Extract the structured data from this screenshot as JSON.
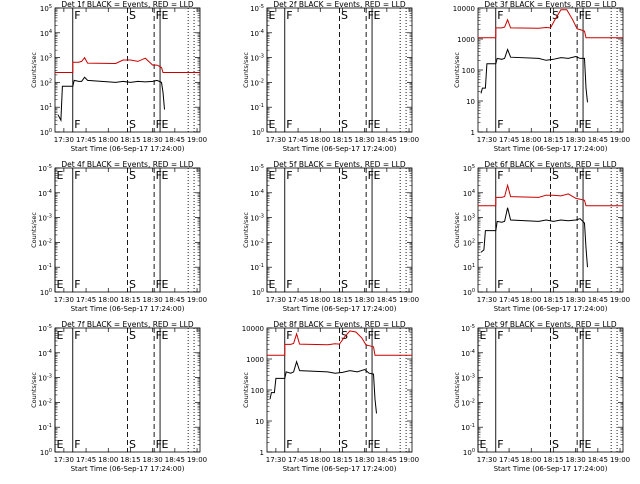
{
  "colors": {
    "events": "#000000",
    "lld": "#cc0000",
    "axis": "#000000",
    "background": "#ffffff"
  },
  "chart_data": [
    {
      "type": "line",
      "title": "Det 1f BLACK = Events, RED = LLD",
      "xlabel": "Start Time (06-Sep-17 17:24:00)",
      "ylabel": "Counts/sec",
      "x_tick_labels": [
        "17:30",
        "17:45",
        "18:00",
        "18:15",
        "18:30",
        "18:45",
        "19:00"
      ],
      "y_scale": "log",
      "y_tick_labels": [
        "10^0",
        "10^1",
        "10^2",
        "10^3",
        "10^4",
        "10^5"
      ],
      "ylim": [
        1,
        100000
      ],
      "markers": [
        {
          "time": "17:36",
          "label": "F",
          "style": "solid"
        },
        {
          "time": "18:13",
          "label": "S",
          "style": "dashed"
        },
        {
          "time": "18:31",
          "label": "F",
          "style": "dashed"
        },
        {
          "time": "18:35",
          "label": "E",
          "style": "solid"
        },
        {
          "time": "18:54",
          "label": "",
          "style": "dotted"
        },
        {
          "time": "18:58",
          "label": "",
          "style": "dotted"
        }
      ],
      "series": [
        {
          "name": "LLD",
          "color": "red",
          "x": [
            "17:24",
            "17:36",
            "17:36",
            "17:40",
            "17:42",
            "17:44",
            "17:46",
            "18:05",
            "18:10",
            "18:15",
            "18:20",
            "18:25",
            "18:30",
            "18:33",
            "18:36",
            "18:37",
            "18:40",
            "18:50",
            "19:00",
            "19:02"
          ],
          "values": [
            250,
            250,
            650,
            650,
            700,
            1000,
            600,
            580,
            800,
            800,
            700,
            950,
            500,
            500,
            400,
            250,
            250,
            250,
            250,
            250
          ]
        },
        {
          "name": "Events",
          "color": "black",
          "x": [
            "17:26",
            "17:28",
            "17:29",
            "17:36",
            "17:37",
            "17:40",
            "17:42",
            "17:44",
            "17:46",
            "18:05",
            "18:10",
            "18:15",
            "18:20",
            "18:25",
            "18:30",
            "18:33",
            "18:36",
            "18:37",
            "18:38"
          ],
          "values": [
            5,
            3,
            70,
            70,
            120,
            110,
            110,
            160,
            120,
            100,
            110,
            100,
            110,
            105,
            110,
            120,
            100,
            40,
            8
          ]
        }
      ]
    },
    {
      "type": "line",
      "title": "Det 2f BLACK = Events, RED = LLD",
      "xlabel": "Start Time (06-Sep-17 17:24:00)",
      "ylabel": "Counts/sec",
      "x_tick_labels": [
        "17:30",
        "17:45",
        "18:00",
        "18:15",
        "18:30",
        "18:45",
        "19:00"
      ],
      "y_scale": "log",
      "y_tick_labels": [
        "10^0",
        "10^-1",
        "10^-2",
        "10^-3",
        "10^-4",
        "10^-5"
      ],
      "ylim": [
        1,
        100000
      ],
      "markers": [
        {
          "time": "17:24",
          "label": "E",
          "style": "solid"
        },
        {
          "time": "17:36",
          "label": "F",
          "style": "solid"
        },
        {
          "time": "18:13",
          "label": "S",
          "style": "dashed"
        },
        {
          "time": "18:31",
          "label": "F",
          "style": "dashed"
        },
        {
          "time": "18:35",
          "label": "E",
          "style": "solid"
        },
        {
          "time": "18:54",
          "label": "",
          "style": "dotted"
        },
        {
          "time": "18:58",
          "label": "",
          "style": "dotted"
        }
      ],
      "series": []
    },
    {
      "type": "line",
      "title": "Det 3f BLACK = Events, RED = LLD",
      "xlabel": "Start Time (06-Sep-17 17:24:00)",
      "ylabel": "Counts/sec",
      "x_tick_labels": [
        "17:30",
        "17:45",
        "18:00",
        "18:15",
        "18:30",
        "18:45",
        "19:00"
      ],
      "y_scale": "log",
      "y_tick_labels": [
        "1",
        "10",
        "100",
        "1000",
        "10000"
      ],
      "ylim": [
        1,
        15000
      ],
      "markers": [
        {
          "time": "17:36",
          "label": "F",
          "style": "solid"
        },
        {
          "time": "18:13",
          "label": "S",
          "style": "dashed"
        },
        {
          "time": "18:31",
          "label": "F",
          "style": "dashed"
        },
        {
          "time": "18:35",
          "label": "E",
          "style": "solid"
        },
        {
          "time": "18:54",
          "label": "",
          "style": "dotted"
        },
        {
          "time": "18:58",
          "label": "",
          "style": "dotted"
        }
      ],
      "series": [
        {
          "name": "LLD",
          "color": "red",
          "x": [
            "17:24",
            "17:36",
            "17:36",
            "17:40",
            "17:42",
            "17:44",
            "17:46",
            "18:05",
            "18:10",
            "18:13",
            "18:16",
            "18:20",
            "18:24",
            "18:28",
            "18:31",
            "18:33",
            "18:36",
            "18:37",
            "18:40",
            "18:50",
            "19:00",
            "19:02"
          ],
          "values": [
            1500,
            1500,
            3200,
            3200,
            3400,
            6000,
            3200,
            3100,
            3300,
            3200,
            6000,
            13000,
            13000,
            6000,
            3000,
            2800,
            2500,
            1500,
            1500,
            1500,
            1500,
            1500
          ]
        },
        {
          "name": "Events",
          "color": "black",
          "x": [
            "17:26",
            "17:27",
            "17:29",
            "17:30",
            "17:36",
            "17:37",
            "17:40",
            "17:42",
            "17:44",
            "17:46",
            "18:05",
            "18:10",
            "18:15",
            "18:20",
            "18:25",
            "18:30",
            "18:33",
            "18:36",
            "18:37",
            "18:38"
          ],
          "values": [
            20,
            30,
            30,
            200,
            200,
            300,
            280,
            300,
            600,
            330,
            300,
            260,
            280,
            320,
            300,
            350,
            300,
            300,
            30,
            10
          ]
        }
      ]
    },
    {
      "type": "line",
      "title": "Det 4f BLACK = Events, RED = LLD",
      "xlabel": "Start Time (06-Sep-17 17:24:00)",
      "ylabel": "Counts/sec",
      "x_tick_labels": [
        "17:30",
        "17:45",
        "18:00",
        "18:15",
        "18:30",
        "18:45",
        "19:00"
      ],
      "y_scale": "log",
      "y_tick_labels": [
        "10^0",
        "10^-1",
        "10^-2",
        "10^-3",
        "10^-4",
        "10^-5"
      ],
      "ylim": [
        1,
        100000
      ],
      "markers": [
        {
          "time": "17:24",
          "label": "E",
          "style": "solid"
        },
        {
          "time": "17:36",
          "label": "F",
          "style": "solid"
        },
        {
          "time": "18:13",
          "label": "S",
          "style": "dashed"
        },
        {
          "time": "18:31",
          "label": "F",
          "style": "dashed"
        },
        {
          "time": "18:35",
          "label": "E",
          "style": "solid"
        },
        {
          "time": "18:54",
          "label": "",
          "style": "dotted"
        },
        {
          "time": "18:58",
          "label": "",
          "style": "dotted"
        }
      ],
      "series": []
    },
    {
      "type": "line",
      "title": "Det 5f BLACK = Events, RED = LLD",
      "xlabel": "Start Time (06-Sep-17 17:24:00)",
      "ylabel": "Counts/sec",
      "x_tick_labels": [
        "17:30",
        "17:45",
        "18:00",
        "18:15",
        "18:30",
        "18:45",
        "19:00"
      ],
      "y_scale": "log",
      "y_tick_labels": [
        "10^0",
        "10^-1",
        "10^-2",
        "10^-3",
        "10^-4",
        "10^-5"
      ],
      "ylim": [
        1,
        100000
      ],
      "markers": [
        {
          "time": "17:24",
          "label": "E",
          "style": "solid"
        },
        {
          "time": "17:36",
          "label": "F",
          "style": "solid"
        },
        {
          "time": "18:13",
          "label": "S",
          "style": "dashed"
        },
        {
          "time": "18:31",
          "label": "F",
          "style": "dashed"
        },
        {
          "time": "18:35",
          "label": "E",
          "style": "solid"
        },
        {
          "time": "18:54",
          "label": "",
          "style": "dotted"
        },
        {
          "time": "18:58",
          "label": "",
          "style": "dotted"
        }
      ],
      "series": []
    },
    {
      "type": "line",
      "title": "Det 6f BLACK = Events, RED = LLD",
      "xlabel": "Start Time (06-Sep-17 17:24:00)",
      "ylabel": "Counts/sec",
      "x_tick_labels": [
        "17:30",
        "17:45",
        "18:00",
        "18:15",
        "18:30",
        "18:45",
        "19:00"
      ],
      "y_scale": "log",
      "y_tick_labels": [
        "10^0",
        "10^1",
        "10^2",
        "10^3",
        "10^4",
        "10^5"
      ],
      "ylim": [
        1,
        100000
      ],
      "markers": [
        {
          "time": "17:36",
          "label": "F",
          "style": "solid"
        },
        {
          "time": "18:13",
          "label": "S",
          "style": "dashed"
        },
        {
          "time": "18:31",
          "label": "F",
          "style": "dashed"
        },
        {
          "time": "18:35",
          "label": "E",
          "style": "solid"
        },
        {
          "time": "18:54",
          "label": "",
          "style": "dotted"
        },
        {
          "time": "18:58",
          "label": "",
          "style": "dotted"
        }
      ],
      "series": [
        {
          "name": "LLD",
          "color": "red",
          "x": [
            "17:24",
            "17:36",
            "17:36",
            "17:40",
            "17:42",
            "17:44",
            "17:46",
            "18:05",
            "18:10",
            "18:15",
            "18:20",
            "18:25",
            "18:30",
            "18:33",
            "18:36",
            "18:37",
            "18:40",
            "18:50",
            "19:00",
            "19:02"
          ],
          "values": [
            3000,
            3000,
            6500,
            6500,
            7000,
            20000,
            7000,
            6500,
            8000,
            8000,
            7500,
            9000,
            6000,
            5500,
            5000,
            3000,
            3000,
            3000,
            3000,
            3000
          ]
        },
        {
          "name": "Events",
          "color": "black",
          "x": [
            "17:26",
            "17:28",
            "17:29",
            "17:36",
            "17:37",
            "17:40",
            "17:42",
            "17:44",
            "17:46",
            "18:05",
            "18:10",
            "18:15",
            "18:20",
            "18:25",
            "18:30",
            "18:33",
            "18:36",
            "18:37",
            "18:38"
          ],
          "values": [
            40,
            50,
            300,
            300,
            700,
            650,
            700,
            2500,
            800,
            700,
            800,
            700,
            800,
            750,
            800,
            900,
            600,
            60,
            10
          ]
        }
      ]
    },
    {
      "type": "line",
      "title": "Det 7f BLACK = Events, RED = LLD",
      "xlabel": "Start Time (06-Sep-17 17:24:00)",
      "ylabel": "Counts/sec",
      "x_tick_labels": [
        "17:30",
        "17:45",
        "18:00",
        "18:15",
        "18:30",
        "18:45",
        "19:00"
      ],
      "y_scale": "log",
      "y_tick_labels": [
        "10^0",
        "10^-1",
        "10^-2",
        "10^-3",
        "10^-4",
        "10^-5"
      ],
      "ylim": [
        1,
        100000
      ],
      "markers": [
        {
          "time": "17:24",
          "label": "E",
          "style": "solid"
        },
        {
          "time": "17:36",
          "label": "F",
          "style": "solid"
        },
        {
          "time": "18:13",
          "label": "S",
          "style": "dashed"
        },
        {
          "time": "18:31",
          "label": "F",
          "style": "dashed"
        },
        {
          "time": "18:35",
          "label": "E",
          "style": "solid"
        },
        {
          "time": "18:54",
          "label": "",
          "style": "dotted"
        },
        {
          "time": "18:58",
          "label": "",
          "style": "dotted"
        }
      ],
      "series": []
    },
    {
      "type": "line",
      "title": "Det 8f BLACK = Events, RED = LLD",
      "xlabel": "Start Time (06-Sep-17 17:24:00)",
      "ylabel": "Counts/sec",
      "x_tick_labels": [
        "17:30",
        "17:45",
        "18:00",
        "18:15",
        "18:30",
        "18:45",
        "19:00"
      ],
      "y_scale": "log",
      "y_tick_labels": [
        "1",
        "10",
        "100",
        "1000",
        "10000"
      ],
      "ylim": [
        1,
        15000
      ],
      "markers": [
        {
          "time": "17:36",
          "label": "F",
          "style": "solid"
        },
        {
          "time": "18:13",
          "label": "S",
          "style": "dashed"
        },
        {
          "time": "18:31",
          "label": "F",
          "style": "dashed"
        },
        {
          "time": "18:35",
          "label": "E",
          "style": "solid"
        },
        {
          "time": "18:54",
          "label": "",
          "style": "dotted"
        },
        {
          "time": "18:58",
          "label": "",
          "style": "dotted"
        }
      ],
      "series": [
        {
          "name": "LLD",
          "color": "red",
          "x": [
            "17:24",
            "17:36",
            "17:36",
            "17:40",
            "17:42",
            "17:44",
            "17:46",
            "18:05",
            "18:10",
            "18:13",
            "18:16",
            "18:20",
            "18:24",
            "18:28",
            "18:31",
            "18:33",
            "18:36",
            "18:37",
            "18:40",
            "18:50",
            "19:00",
            "19:02"
          ],
          "values": [
            1800,
            1800,
            4200,
            4200,
            4500,
            9500,
            4300,
            4100,
            4400,
            4300,
            7000,
            12000,
            11000,
            7000,
            4000,
            3800,
            3500,
            1800,
            1800,
            1800,
            1800,
            1800
          ]
        },
        {
          "name": "Events",
          "color": "black",
          "x": [
            "17:26",
            "17:27",
            "17:29",
            "17:30",
            "17:36",
            "17:37",
            "17:40",
            "17:42",
            "17:44",
            "17:46",
            "18:05",
            "18:10",
            "18:15",
            "18:20",
            "18:25",
            "18:30",
            "18:33",
            "18:36",
            "18:37",
            "18:38"
          ],
          "values": [
            60,
            100,
            100,
            300,
            300,
            500,
            450,
            500,
            1100,
            550,
            500,
            450,
            480,
            550,
            500,
            600,
            450,
            420,
            60,
            20
          ]
        }
      ]
    },
    {
      "type": "line",
      "title": "Det 9f BLACK = Events, RED = LLD",
      "xlabel": "Start Time (06-Sep-17 17:24:00)",
      "ylabel": "Counts/sec",
      "x_tick_labels": [
        "17:30",
        "17:45",
        "18:00",
        "18:15",
        "18:30",
        "18:45",
        "19:00"
      ],
      "y_scale": "log",
      "y_tick_labels": [
        "10^0",
        "10^-1",
        "10^-2",
        "10^-3",
        "10^-4",
        "10^-5"
      ],
      "ylim": [
        1,
        100000
      ],
      "markers": [
        {
          "time": "17:24",
          "label": "E",
          "style": "solid"
        },
        {
          "time": "17:36",
          "label": "F",
          "style": "solid"
        },
        {
          "time": "18:13",
          "label": "S",
          "style": "dashed"
        },
        {
          "time": "18:31",
          "label": "F",
          "style": "dashed"
        },
        {
          "time": "18:35",
          "label": "E",
          "style": "solid"
        },
        {
          "time": "18:54",
          "label": "",
          "style": "dotted"
        },
        {
          "time": "18:58",
          "label": "",
          "style": "dotted"
        }
      ],
      "series": []
    }
  ]
}
